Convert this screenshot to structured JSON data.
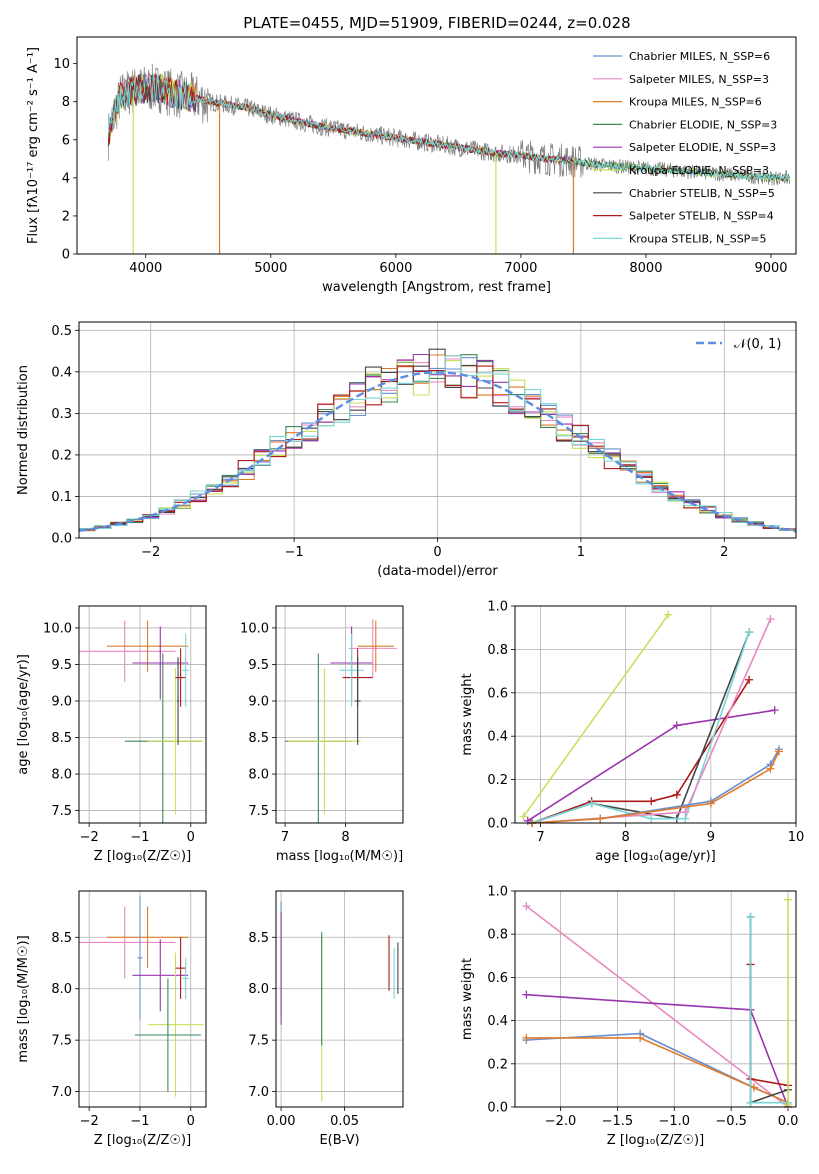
{
  "figure_title": "PLATE=0455, MJD=51909, FIBERID=0244, z=0.028",
  "colors": {
    "chabrier_miles": "#6a8fd0",
    "salpeter_miles": "#e888c0",
    "kroupa_miles": "#e07b2a",
    "chabrier_elodie": "#3a8a5a",
    "salpeter_elodie": "#9a35b0",
    "kroupa_elodie": "#c8e05a",
    "chabrier_stelib": "#454545",
    "salpeter_stelib": "#b01a1a",
    "kroupa_stelib": "#78d6d6",
    "data": "#808080",
    "normal": "#5b8ee0"
  },
  "chart_data": [
    {
      "id": "spectrum",
      "type": "line",
      "title": "PLATE=0455, MJD=51909, FIBERID=0244, z=0.028",
      "xlabel": "wavelength [Angstrom, rest frame]",
      "ylabel": "Flux [fλ10⁻¹⁷ erg cm⁻² s⁻¹ A⁻¹]",
      "xlim": [
        3450,
        9200
      ],
      "ylim": [
        0,
        11.4
      ],
      "xticks": [
        "4000",
        "5000",
        "6000",
        "7000",
        "8000",
        "9000"
      ],
      "yticks": [
        "0",
        "2",
        "4",
        "6",
        "8",
        "10"
      ],
      "grid": false,
      "legend_position": "top-right",
      "series": [
        {
          "name": "Chabrier MILES, N_SSP=6",
          "color_key": "chabrier_miles"
        },
        {
          "name": "Salpeter MILES, N_SSP=3",
          "color_key": "salpeter_miles"
        },
        {
          "name": "Kroupa MILES, N_SSP=6",
          "color_key": "kroupa_miles"
        },
        {
          "name": "Chabrier ELODIE, N_SSP=3",
          "color_key": "chabrier_elodie"
        },
        {
          "name": "Salpeter ELODIE, N_SSP=3",
          "color_key": "salpeter_elodie"
        },
        {
          "name": "Kroupa ELODIE, N_SSP=3",
          "color_key": "kroupa_elodie"
        },
        {
          "name": "Chabrier STELIB, N_SSP=5",
          "color_key": "chabrier_stelib"
        },
        {
          "name": "Salpeter STELIB, N_SSP=4",
          "color_key": "salpeter_stelib"
        },
        {
          "name": "Kroupa STELIB, N_SSP=5",
          "color_key": "kroupa_stelib"
        }
      ],
      "continuum": {
        "x": [
          3700,
          3750,
          3800,
          3900,
          4000,
          4100,
          4200,
          4300,
          4400,
          4500,
          4600,
          4700,
          4800,
          4900,
          5000,
          5200,
          5400,
          5600,
          5800,
          6000,
          6200,
          6400,
          6600,
          6800,
          7000,
          7200,
          7400,
          7600,
          7800,
          8000,
          8200,
          8400,
          8600,
          8800,
          9000,
          9150
        ],
        "y": [
          6.2,
          7.4,
          8.3,
          8.6,
          8.7,
          8.7,
          8.5,
          8.3,
          8.2,
          8.0,
          7.9,
          7.8,
          7.7,
          7.5,
          7.3,
          7.0,
          6.7,
          6.5,
          6.3,
          6.1,
          5.9,
          5.7,
          5.5,
          5.3,
          5.2,
          5.0,
          4.9,
          4.7,
          4.6,
          4.5,
          4.4,
          4.3,
          4.2,
          4.1,
          4.0,
          4.0
        ]
      }
    },
    {
      "id": "residuals",
      "type": "line",
      "xlabel": "(data-model)/error",
      "ylabel": "Normed distribution",
      "xlim": [
        -2.5,
        2.5
      ],
      "ylim": [
        0,
        0.52
      ],
      "xticks": [
        "−2",
        "−1",
        "0",
        "1",
        "2"
      ],
      "yticks": [
        "0.0",
        "0.1",
        "0.2",
        "0.3",
        "0.4",
        "0.5"
      ],
      "grid": true,
      "legend_position": "top-right",
      "legend": "𝒩(0, 1)"
    },
    {
      "id": "age_vs_z",
      "type": "scatter",
      "xlabel": "Z [log₁₀(Z/Z☉)]",
      "ylabel": "age  [log₁₀(age/yr)]",
      "xlim": [
        -2.2,
        0.3
      ],
      "ylim": [
        7.33,
        10.3
      ],
      "xticks": [
        "−2",
        "−1",
        "0"
      ],
      "yticks": [
        "7.5",
        "8.0",
        "8.5",
        "9.0",
        "9.5",
        "10.0"
      ],
      "grid": true,
      "crosses": [
        {
          "c": "salpeter_miles",
          "x": -1.3,
          "xe": 1.0,
          "y": 9.68,
          "ye": 0.42
        },
        {
          "c": "kroupa_miles",
          "x": -0.85,
          "xe": 0.8,
          "y": 9.75,
          "ye": 0.35
        },
        {
          "c": "salpeter_elodie",
          "x": -0.6,
          "xe": 0.55,
          "y": 9.52,
          "ye": 0.5
        },
        {
          "c": "chabrier_elodie",
          "x": -0.55,
          "xe": 0.75,
          "y": 8.45,
          "ye": 1.2
        },
        {
          "c": "kroupa_elodie",
          "x": -0.3,
          "xe": 0.55,
          "y": 8.45,
          "ye": 1.0
        },
        {
          "c": "salpeter_stelib",
          "x": -0.2,
          "xe": 0.1,
          "y": 9.32,
          "ye": 0.4
        },
        {
          "c": "kroupa_stelib",
          "x": -0.1,
          "xe": 0.07,
          "y": 9.42,
          "ye": 0.5
        },
        {
          "c": "chabrier_stelib",
          "x": -0.25,
          "xe": 0.02,
          "y": 9.0,
          "ye": 0.6
        }
      ]
    },
    {
      "id": "age_vs_mass",
      "type": "scatter",
      "xlabel": "mass [log₁₀(M/M☉)]",
      "xlim": [
        6.85,
        8.95
      ],
      "ylim": [
        7.33,
        10.3
      ],
      "xticks": [
        "7",
        "8"
      ],
      "yticks": [
        "7.5",
        "8.0",
        "8.5",
        "9.0",
        "9.5",
        "10.0"
      ],
      "grid": true,
      "crosses": [
        {
          "c": "chabrier_elodie",
          "x": 7.55,
          "xe": 0.55,
          "y": 8.45,
          "ye": 1.2
        },
        {
          "c": "kroupa_elodie",
          "x": 7.65,
          "xe": 0.6,
          "y": 8.45,
          "ye": 1.0
        },
        {
          "c": "salpeter_elodie",
          "x": 8.1,
          "xe": 0.35,
          "y": 9.52,
          "ye": 0.5
        },
        {
          "c": "salpeter_miles",
          "x": 8.45,
          "xe": 0.4,
          "y": 9.72,
          "ye": 0.4
        },
        {
          "c": "kroupa_miles",
          "x": 8.5,
          "xe": 0.3,
          "y": 9.75,
          "ye": 0.35
        },
        {
          "c": "salpeter_stelib",
          "x": 8.2,
          "xe": 0.25,
          "y": 9.32,
          "ye": 0.4
        },
        {
          "c": "kroupa_stelib",
          "x": 8.1,
          "xe": 0.2,
          "y": 9.42,
          "ye": 0.5
        },
        {
          "c": "chabrier_stelib",
          "x": 8.2,
          "xe": 0.05,
          "y": 9.0,
          "ye": 0.6
        }
      ]
    },
    {
      "id": "weight_vs_age",
      "type": "line",
      "xlabel": "age  [log₁₀(age/yr)]",
      "ylabel": "mass weight",
      "xlim": [
        6.7,
        10.0
      ],
      "ylim": [
        0,
        1.0
      ],
      "xticks": [
        "7",
        "8",
        "9",
        "10"
      ],
      "yticks": [
        "0.0",
        "0.2",
        "0.4",
        "0.6",
        "0.8",
        "1.0"
      ],
      "grid": true,
      "series": [
        {
          "c": "kroupa_elodie",
          "x": [
            6.8,
            8.5
          ],
          "y": [
            0.03,
            0.96
          ]
        },
        {
          "c": "salpeter_elodie",
          "x": [
            6.85,
            8.6,
            9.75
          ],
          "y": [
            0.01,
            0.45,
            0.52
          ]
        },
        {
          "c": "salpeter_stelib",
          "x": [
            6.9,
            7.6,
            8.3,
            8.6,
            9.45
          ],
          "y": [
            0.0,
            0.1,
            0.1,
            0.13,
            0.66
          ]
        },
        {
          "c": "chabrier_stelib",
          "x": [
            6.9,
            7.6,
            8.6,
            9.45
          ],
          "y": [
            0.0,
            0.09,
            0.02,
            0.88
          ]
        },
        {
          "c": "kroupa_stelib",
          "x": [
            6.9,
            7.6,
            8.3,
            8.7,
            9.45
          ],
          "y": [
            0.0,
            0.09,
            0.02,
            0.02,
            0.88
          ]
        },
        {
          "c": "salpeter_miles",
          "x": [
            6.9,
            8.7,
            9.7
          ],
          "y": [
            0.0,
            0.05,
            0.94
          ]
        },
        {
          "c": "chabrier_miles",
          "x": [
            6.9,
            7.7,
            9.0,
            9.7,
            9.8
          ],
          "y": [
            0.0,
            0.02,
            0.1,
            0.27,
            0.34
          ]
        },
        {
          "c": "kroupa_miles",
          "x": [
            6.9,
            7.7,
            9.0,
            9.7,
            9.8
          ],
          "y": [
            0.0,
            0.02,
            0.09,
            0.25,
            0.33
          ]
        }
      ]
    },
    {
      "id": "mass_vs_z",
      "type": "scatter",
      "xlabel": "Z [log₁₀(Z/Z☉)]",
      "ylabel": "mass [log₁₀(M/M☉)]",
      "xlim": [
        -2.2,
        0.3
      ],
      "ylim": [
        6.85,
        8.95
      ],
      "xticks": [
        "−2",
        "−1",
        "0"
      ],
      "yticks": [
        "7.0",
        "7.5",
        "8.0",
        "8.5"
      ],
      "grid": true,
      "crosses": [
        {
          "c": "salpeter_miles",
          "x": -1.3,
          "xe": 1.0,
          "y": 8.45,
          "ye": 0.35
        },
        {
          "c": "kroupa_miles",
          "x": -0.85,
          "xe": 0.8,
          "y": 8.5,
          "ye": 0.3
        },
        {
          "c": "chabrier_miles",
          "x": -1.0,
          "xe": 0.05,
          "y": 8.3,
          "ye": 0.6
        },
        {
          "c": "salpeter_elodie",
          "x": -0.6,
          "xe": 0.55,
          "y": 8.13,
          "ye": 0.35
        },
        {
          "c": "kroupa_elodie",
          "x": -0.3,
          "xe": 0.55,
          "y": 7.65,
          "ye": 0.7
        },
        {
          "c": "chabrier_elodie",
          "x": -0.45,
          "xe": 0.65,
          "y": 7.55,
          "ye": 0.55
        },
        {
          "c": "salpeter_stelib",
          "x": -0.2,
          "xe": 0.1,
          "y": 8.2,
          "ye": 0.3
        },
        {
          "c": "kroupa_stelib",
          "x": -0.1,
          "xe": 0.07,
          "y": 8.1,
          "ye": 0.2
        }
      ]
    },
    {
      "id": "mass_vs_ebv",
      "type": "scatter",
      "xlabel": "E(B-V)",
      "xlim": [
        -0.004,
        0.096
      ],
      "ylim": [
        6.85,
        8.95
      ],
      "xticks": [
        "0.00",
        "0.05"
      ],
      "yticks": [
        "7.0",
        "7.5",
        "8.0",
        "8.5"
      ],
      "grid": true,
      "crosses": [
        {
          "c": "chabrier_miles",
          "x": 0.0,
          "xe": 0.0,
          "y": 8.3,
          "ye": 0.55
        },
        {
          "c": "salpeter_elodie",
          "x": 0.0,
          "xe": 0.0,
          "y": 8.2,
          "ye": 0.55
        },
        {
          "c": "kroupa_elodie",
          "x": 0.032,
          "xe": 0.0,
          "y": 7.7,
          "ye": 0.8
        },
        {
          "c": "chabrier_elodie",
          "x": 0.032,
          "xe": 0.0,
          "y": 8.0,
          "ye": 0.55
        },
        {
          "c": "salpeter_stelib",
          "x": 0.085,
          "xe": 0.0,
          "y": 8.25,
          "ye": 0.27
        },
        {
          "c": "kroupa_stelib",
          "x": 0.089,
          "xe": 0.0,
          "y": 8.15,
          "ye": 0.25
        },
        {
          "c": "chabrier_stelib",
          "x": 0.092,
          "xe": 0.0,
          "y": 8.2,
          "ye": 0.25
        }
      ]
    },
    {
      "id": "weight_vs_z",
      "type": "line",
      "xlabel": "Z [log₁₀(Z/Z☉)]",
      "ylabel": "mass weight",
      "xlim": [
        -2.4,
        0.07
      ],
      "ylim": [
        0,
        1.0
      ],
      "xticks": [
        "−2.0",
        "−1.5",
        "−1.0",
        "−0.5",
        "0.0"
      ],
      "yticks": [
        "0.0",
        "0.2",
        "0.4",
        "0.6",
        "0.8",
        "1.0"
      ],
      "grid": true,
      "series": [
        {
          "c": "salpeter_miles",
          "x": [
            -2.3,
            0.0
          ],
          "y": [
            0.93,
            0.0
          ]
        },
        {
          "c": "salpeter_elodie",
          "x": [
            -2.3,
            -0.33,
            0.0
          ],
          "y": [
            0.52,
            0.45,
            0.0
          ]
        },
        {
          "c": "chabrier_miles",
          "x": [
            -2.3,
            -1.3,
            -0.3,
            0.0
          ],
          "y": [
            0.31,
            0.34,
            0.09,
            0.02
          ]
        },
        {
          "c": "kroupa_miles",
          "x": [
            -2.3,
            -1.3,
            -0.3,
            0.0
          ],
          "y": [
            0.32,
            0.32,
            0.09,
            0.02
          ]
        },
        {
          "c": "salpeter_stelib",
          "x": [
            -0.33,
            -0.33,
            0.0
          ],
          "y": [
            0.66,
            0.13,
            0.1
          ]
        },
        {
          "c": "chabrier_stelib",
          "x": [
            -0.33,
            -0.33,
            0.0
          ],
          "y": [
            0.88,
            0.02,
            0.08
          ]
        },
        {
          "c": "kroupa_stelib",
          "x": [
            -0.33,
            -0.33,
            0.0
          ],
          "y": [
            0.88,
            0.02,
            0.02
          ]
        },
        {
          "c": "kroupa_elodie",
          "x": [
            0.0,
            0.0
          ],
          "y": [
            0.96,
            0.01
          ]
        }
      ]
    }
  ]
}
